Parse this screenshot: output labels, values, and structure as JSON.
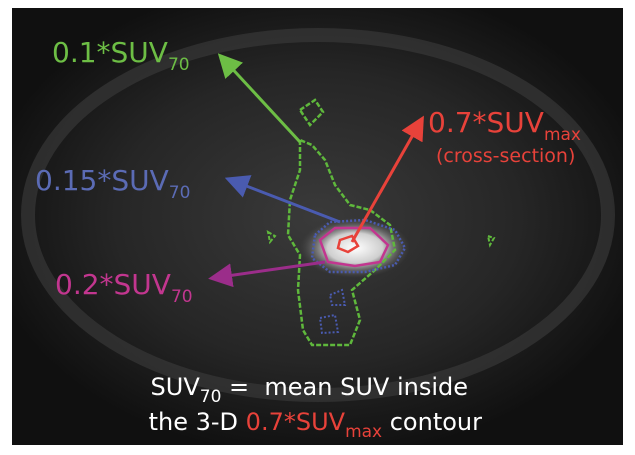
{
  "labels": [
    {
      "text": "0.1*SUV",
      "sub": "70"
    },
    {
      "text": "0.15*SUV",
      "sub": "70"
    },
    {
      "text": "0.2*SUV",
      "sub": "70"
    },
    {
      "text": "0.7*SUV",
      "sub": "max",
      "note": "(cross-section)"
    }
  ],
  "footer": {
    "line1": {
      "text": "SUV",
      "sub": "70",
      "rest": " =  mean SUV inside"
    },
    "line2": {
      "pre": "the 3-D ",
      "text": "0.7*SUV",
      "sub": "max",
      "post": " contour"
    }
  }
}
